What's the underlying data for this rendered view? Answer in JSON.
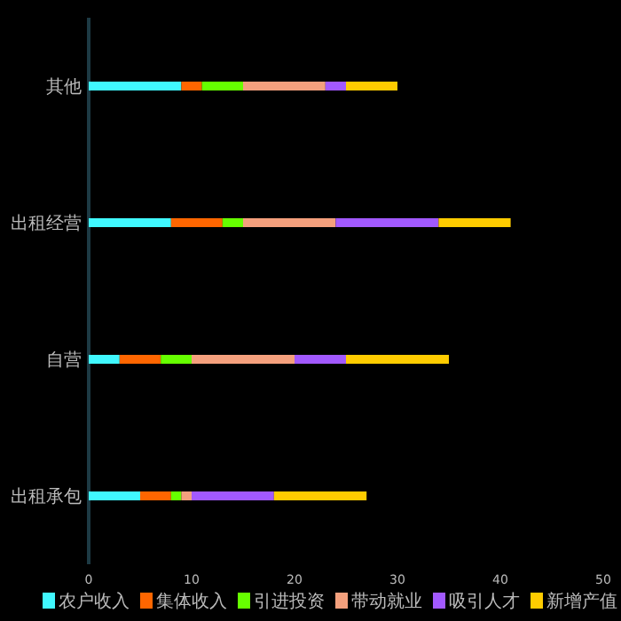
{
  "chart_data": {
    "type": "bar",
    "orientation": "horizontal",
    "stacked": true,
    "categories": [
      "其他",
      "出租经营",
      "自营",
      "出租承包"
    ],
    "series": [
      {
        "name": "农户收入",
        "color": "#40f8ff",
        "values": [
          9,
          8,
          3,
          5
        ]
      },
      {
        "name": "集体收入",
        "color": "#ff6600",
        "values": [
          2,
          5,
          4,
          3
        ]
      },
      {
        "name": "引进投资",
        "color": "#66ff00",
        "values": [
          4,
          2,
          3,
          1
        ]
      },
      {
        "name": "带动就业",
        "color": "#f4a07d",
        "values": [
          8,
          9,
          10,
          1
        ]
      },
      {
        "name": "吸引人才",
        "color": "#a259ff",
        "values": [
          2,
          10,
          5,
          8
        ]
      },
      {
        "name": "新增产值",
        "color": "#ffcc00",
        "values": [
          5,
          7,
          10,
          9
        ]
      }
    ],
    "xlim": [
      0,
      50
    ],
    "xticks": [
      0,
      10,
      20,
      30,
      40,
      50
    ],
    "grid": false,
    "legend": "bottom"
  }
}
